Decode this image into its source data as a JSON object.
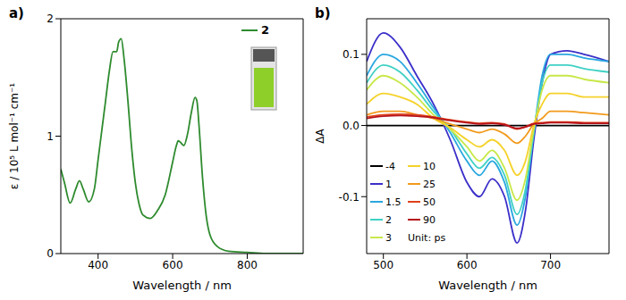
{
  "chart_data": [
    {
      "type": "line",
      "title": "a)",
      "x_label": "Wavelength / nm",
      "y_label": "ε / 10⁵ L mol⁻¹ cm⁻¹",
      "xlim": [
        300,
        950
      ],
      "xticks": [
        400,
        600,
        800
      ],
      "ylim": [
        0,
        2
      ],
      "yticks": [
        0,
        1,
        2
      ],
      "legend": "upper right",
      "x": [
        300,
        310,
        325,
        340,
        350,
        360,
        375,
        390,
        400,
        410,
        420,
        430,
        440,
        450,
        455,
        462,
        470,
        480,
        490,
        500,
        510,
        520,
        540,
        560,
        580,
        600,
        610,
        615,
        620,
        630,
        640,
        650,
        660,
        665,
        670,
        680,
        690,
        700,
        720,
        750,
        800,
        850,
        900,
        950
      ],
      "series": [
        {
          "name": "2",
          "color": "#2e8b2e",
          "values": [
            0.72,
            0.6,
            0.43,
            0.55,
            0.62,
            0.55,
            0.44,
            0.55,
            0.8,
            1.05,
            1.3,
            1.55,
            1.72,
            1.72,
            1.8,
            1.83,
            1.65,
            1.3,
            0.9,
            0.6,
            0.42,
            0.33,
            0.3,
            0.37,
            0.5,
            0.78,
            0.92,
            0.96,
            0.95,
            0.92,
            1.02,
            1.2,
            1.33,
            1.3,
            1.12,
            0.65,
            0.32,
            0.16,
            0.06,
            0.02,
            0.01,
            0,
            0,
            0
          ]
        }
      ]
    },
    {
      "type": "line",
      "title": "b)",
      "x_label": "Wavelength / nm",
      "y_label": "ΔA",
      "xlim": [
        480,
        770
      ],
      "xticks": [
        500,
        600,
        700
      ],
      "ylim": [
        -0.18,
        0.15
      ],
      "yticks": [
        -0.1,
        {
          "value": 0,
          "label": "0.0"
        },
        0.1
      ],
      "legend": "lower left",
      "annotation": "Unit: ps",
      "x": [
        480,
        500,
        520,
        540,
        560,
        580,
        600,
        615,
        630,
        645,
        660,
        670,
        680,
        690,
        700,
        720,
        740,
        770
      ],
      "series": [
        {
          "name": "-4",
          "color": "#000000",
          "values": [
            0,
            0,
            0,
            0,
            0,
            0,
            0,
            0,
            0,
            0,
            0,
            0,
            0,
            0,
            0,
            0,
            0,
            0
          ]
        },
        {
          "name": "1",
          "color": "#3b2fc9",
          "values": [
            0.09,
            0.13,
            0.11,
            0.07,
            0.03,
            -0.02,
            -0.08,
            -0.1,
            -0.075,
            -0.1,
            -0.165,
            -0.12,
            -0.02,
            0.06,
            0.1,
            0.105,
            0.1,
            0.09
          ]
        },
        {
          "name": "1.5",
          "color": "#2aa7e0",
          "values": [
            0.07,
            0.1,
            0.09,
            0.06,
            0.025,
            -0.01,
            -0.05,
            -0.07,
            -0.05,
            -0.08,
            -0.14,
            -0.1,
            -0.01,
            0.07,
            0.1,
            0.1,
            0.095,
            0.09
          ]
        },
        {
          "name": "2",
          "color": "#3fd1c4",
          "values": [
            0.06,
            0.085,
            0.075,
            0.05,
            0.02,
            -0.005,
            -0.04,
            -0.06,
            -0.045,
            -0.07,
            -0.125,
            -0.09,
            -0.01,
            0.06,
            0.085,
            0.085,
            0.08,
            0.075
          ]
        },
        {
          "name": "3",
          "color": "#c8e84a",
          "values": [
            0.05,
            0.07,
            0.06,
            0.04,
            0.015,
            -0.005,
            -0.03,
            -0.05,
            -0.035,
            -0.06,
            -0.105,
            -0.075,
            -0.005,
            0.05,
            0.07,
            0.07,
            0.065,
            0.06
          ]
        },
        {
          "name": "10",
          "color": "#f5d22a",
          "values": [
            0.03,
            0.045,
            0.04,
            0.03,
            0.01,
            -0.003,
            -0.02,
            -0.03,
            -0.02,
            -0.035,
            -0.07,
            -0.05,
            0,
            0.03,
            0.045,
            0.045,
            0.04,
            0.04
          ]
        },
        {
          "name": "25",
          "color": "#f29a1c",
          "values": [
            0.015,
            0.02,
            0.02,
            0.015,
            0.01,
            0.002,
            -0.005,
            -0.01,
            -0.005,
            -0.012,
            -0.025,
            -0.015,
            0.002,
            0.01,
            0.02,
            0.02,
            0.018,
            0.015
          ]
        },
        {
          "name": "50",
          "color": "#e0421a",
          "values": [
            0.012,
            0.015,
            0.016,
            0.015,
            0.012,
            0.008,
            0.005,
            0.003,
            0.004,
            0.002,
            -0.005,
            -0.002,
            0.003,
            0.004,
            0.005,
            0.005,
            0.004,
            0.004
          ]
        },
        {
          "name": "90",
          "color": "#b5121b",
          "values": [
            0.01,
            0.013,
            0.014,
            0.013,
            0.011,
            0.007,
            0.004,
            0.002,
            0.003,
            0.001,
            -0.004,
            -0.002,
            0.002,
            0.003,
            0.004,
            0.004,
            0.003,
            0.003
          ]
        }
      ]
    }
  ]
}
